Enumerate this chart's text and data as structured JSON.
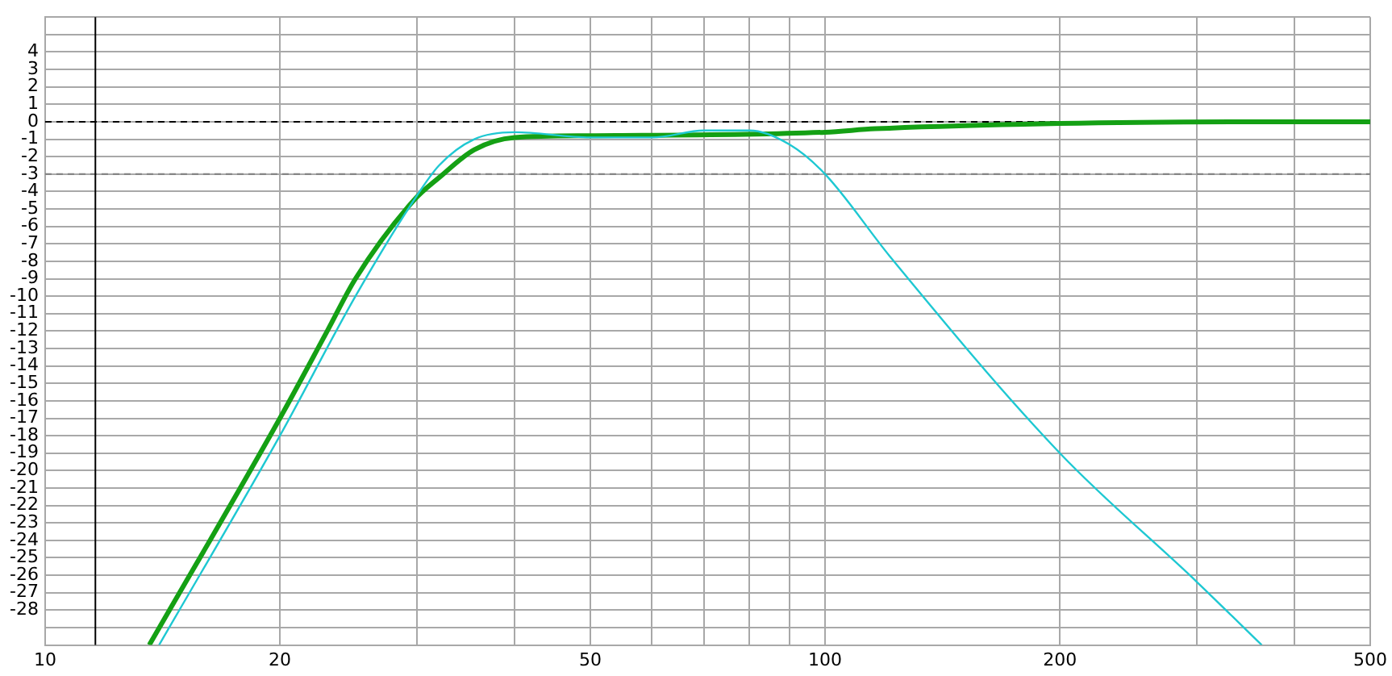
{
  "chart_data": {
    "type": "line",
    "log": "x",
    "grid": true,
    "marker": "none",
    "line_style": "solid",
    "xlim": [
      10,
      500
    ],
    "ylim": [
      -30,
      6
    ],
    "xticks": [
      10,
      20,
      {
        "value": 30,
        "label": null
      },
      {
        "value": 40,
        "label": null
      },
      50,
      {
        "value": 60,
        "label": null
      },
      {
        "value": 70,
        "label": null
      },
      {
        "value": 80,
        "label": null
      },
      {
        "value": 90,
        "label": null
      },
      100,
      200,
      {
        "value": 300,
        "label": null
      },
      {
        "value": 400,
        "label": null
      },
      500
    ],
    "yticks": [
      {
        "value": -30,
        "label": null
      },
      {
        "value": -29,
        "label": null
      },
      -28,
      -27,
      -26,
      -25,
      -24,
      -23,
      -22,
      -21,
      -20,
      -19,
      -18,
      -17,
      -16,
      -15,
      -14,
      -13,
      -12,
      -11,
      -10,
      -9,
      -8,
      -7,
      -6,
      -5,
      -4,
      -3,
      -2,
      -1,
      0,
      1,
      2,
      3,
      4,
      {
        "value": 5,
        "label": null
      },
      {
        "value": 6,
        "label": null
      }
    ],
    "ref_lines": [
      {
        "axis": "y",
        "value": 0,
        "color": "#000000",
        "line_style": "dashed"
      },
      {
        "axis": "y",
        "value": -3,
        "color": "#808080",
        "line_style": "dashed"
      },
      {
        "axis": "x",
        "value": 11.6,
        "color": "#000000",
        "line_style": "solid"
      }
    ],
    "series": [
      {
        "color": "#1ec8d2",
        "x": [
          14,
          20,
          25,
          29.7,
          32,
          35.5,
          40,
          50,
          60,
          70,
          80,
          90,
          100,
          121,
          200,
          300,
          363
        ],
        "values": [
          -30,
          -18,
          -10,
          -4.5,
          -2.5,
          -1,
          -0.6,
          -0.9,
          -0.9,
          -0.5,
          -0.5,
          -1.3,
          -3,
          -7.7,
          -19,
          -26.4,
          -30
        ]
      },
      {
        "color": "#14a014",
        "x": [
          13.6,
          20,
          23,
          25,
          29.7,
          32,
          35.5,
          40,
          50,
          100,
          116,
          200,
          400,
          500
        ],
        "values": [
          -30,
          -17,
          -12,
          -9,
          -4.5,
          -3.2,
          -1.6,
          -0.9,
          -0.8,
          -0.6,
          -0.4,
          -0.1,
          0,
          0
        ]
      }
    ]
  }
}
